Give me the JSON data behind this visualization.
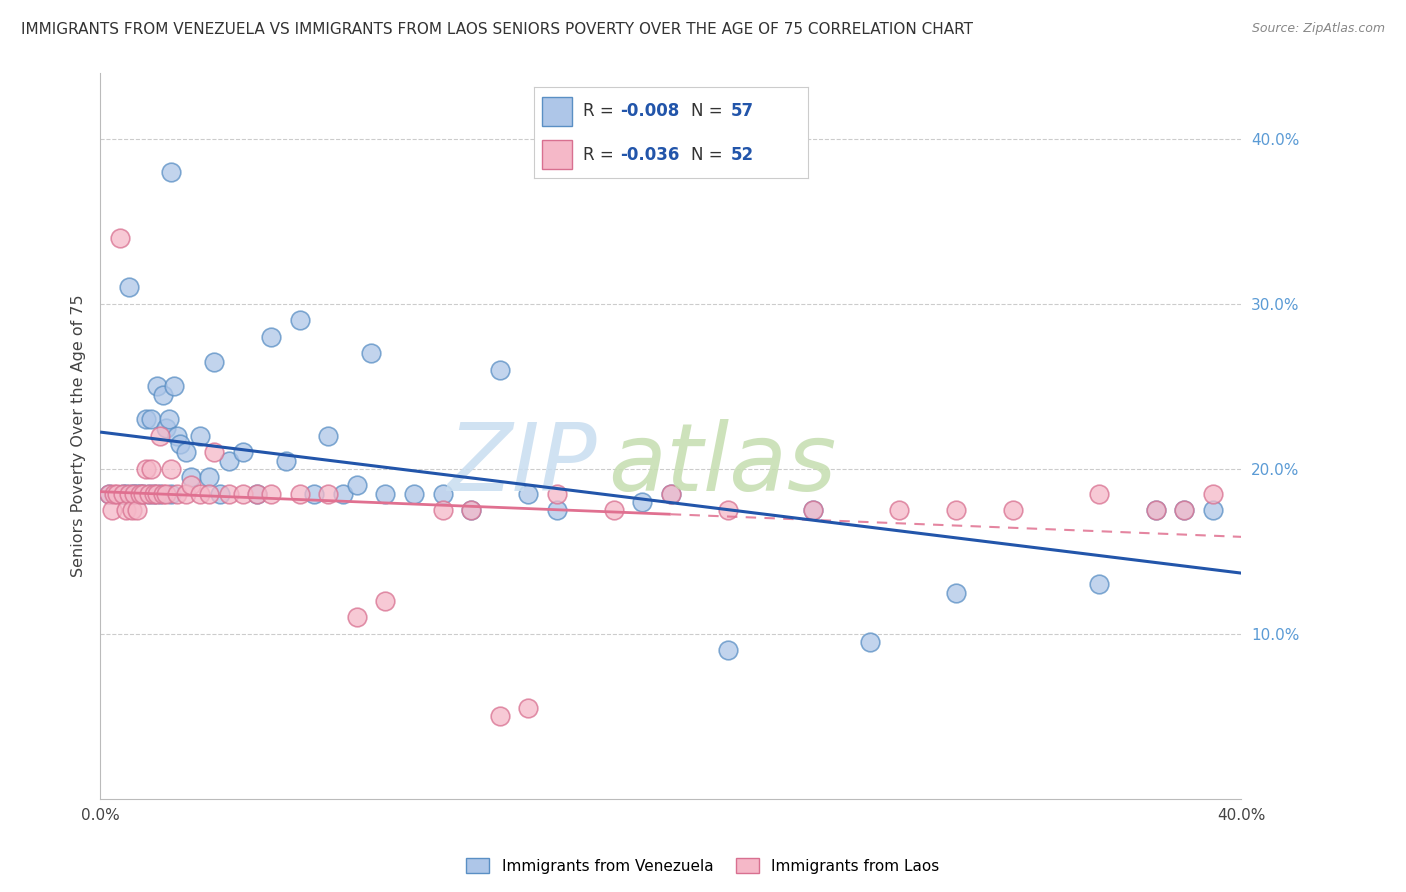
{
  "title": "IMMIGRANTS FROM VENEZUELA VS IMMIGRANTS FROM LAOS SENIORS POVERTY OVER THE AGE OF 75 CORRELATION CHART",
  "source": "Source: ZipAtlas.com",
  "ylabel": "Seniors Poverty Over the Age of 75",
  "xlim": [
    0.0,
    0.4
  ],
  "ylim": [
    0.0,
    0.44
  ],
  "xtick_positions": [
    0.0,
    0.1,
    0.2,
    0.3,
    0.4
  ],
  "xtick_labels": [
    "0.0%",
    "",
    "",
    "",
    "40.0%"
  ],
  "yticks_right": [
    0.1,
    0.2,
    0.3,
    0.4
  ],
  "ytick_labels_right": [
    "10.0%",
    "20.0%",
    "30.0%",
    "40.0%"
  ],
  "legend_label1": "Immigrants from Venezuela",
  "legend_label2": "Immigrants from Laos",
  "R1": "-0.008",
  "N1": "57",
  "R2": "-0.036",
  "N2": "52",
  "color_venezuela": "#aec6e8",
  "color_laos": "#f5b8c8",
  "edge_venezuela": "#5a8fc4",
  "edge_laos": "#d87090",
  "trendline_venezuela_color": "#2255aa",
  "trendline_laos_color": "#e07090",
  "watermark_zip_color": "#c8ddf0",
  "watermark_atlas_color": "#c8ddf0",
  "venezuela_x": [
    0.003,
    0.008,
    0.009,
    0.01,
    0.011,
    0.012,
    0.013,
    0.014,
    0.015,
    0.016,
    0.017,
    0.018,
    0.019,
    0.02,
    0.021,
    0.022,
    0.023,
    0.024,
    0.025,
    0.026,
    0.027,
    0.028,
    0.03,
    0.032,
    0.035,
    0.038,
    0.04,
    0.042,
    0.045,
    0.05,
    0.055,
    0.06,
    0.065,
    0.07,
    0.075,
    0.08,
    0.085,
    0.09,
    0.095,
    0.1,
    0.11,
    0.12,
    0.13,
    0.14,
    0.15,
    0.16,
    0.19,
    0.2,
    0.22,
    0.25,
    0.27,
    0.3,
    0.35,
    0.37,
    0.38,
    0.39,
    0.025
  ],
  "venezuela_y": [
    0.185,
    0.185,
    0.185,
    0.31,
    0.185,
    0.185,
    0.185,
    0.185,
    0.185,
    0.23,
    0.185,
    0.23,
    0.185,
    0.25,
    0.185,
    0.245,
    0.225,
    0.23,
    0.185,
    0.25,
    0.22,
    0.215,
    0.21,
    0.195,
    0.22,
    0.195,
    0.265,
    0.185,
    0.205,
    0.21,
    0.185,
    0.28,
    0.205,
    0.29,
    0.185,
    0.22,
    0.185,
    0.19,
    0.27,
    0.185,
    0.185,
    0.185,
    0.175,
    0.26,
    0.185,
    0.175,
    0.18,
    0.185,
    0.09,
    0.175,
    0.095,
    0.125,
    0.13,
    0.175,
    0.175,
    0.175,
    0.38
  ],
  "laos_x": [
    0.003,
    0.004,
    0.005,
    0.006,
    0.007,
    0.008,
    0.009,
    0.01,
    0.011,
    0.012,
    0.013,
    0.014,
    0.015,
    0.016,
    0.017,
    0.018,
    0.019,
    0.02,
    0.021,
    0.022,
    0.023,
    0.025,
    0.027,
    0.03,
    0.032,
    0.035,
    0.038,
    0.04,
    0.045,
    0.05,
    0.055,
    0.06,
    0.07,
    0.08,
    0.09,
    0.1,
    0.12,
    0.13,
    0.14,
    0.15,
    0.16,
    0.18,
    0.2,
    0.22,
    0.25,
    0.28,
    0.3,
    0.32,
    0.35,
    0.37,
    0.38,
    0.39
  ],
  "laos_y": [
    0.185,
    0.175,
    0.185,
    0.185,
    0.34,
    0.185,
    0.175,
    0.185,
    0.175,
    0.185,
    0.175,
    0.185,
    0.185,
    0.2,
    0.185,
    0.2,
    0.185,
    0.185,
    0.22,
    0.185,
    0.185,
    0.2,
    0.185,
    0.185,
    0.19,
    0.185,
    0.185,
    0.21,
    0.185,
    0.185,
    0.185,
    0.185,
    0.185,
    0.185,
    0.11,
    0.12,
    0.175,
    0.175,
    0.05,
    0.055,
    0.185,
    0.175,
    0.185,
    0.175,
    0.175,
    0.175,
    0.175,
    0.175,
    0.185,
    0.175,
    0.175,
    0.185
  ]
}
